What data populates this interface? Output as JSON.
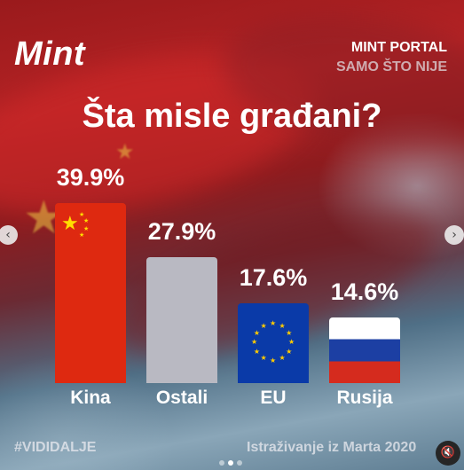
{
  "header": {
    "logo": "Mint",
    "portal_name": "MINT PORTAL",
    "portal_tagline": "SAMO ŠTO NIJE"
  },
  "footer": {
    "hashtag": "#VIDIDALJE",
    "source": "Istraživanje iz Marta 2020"
  },
  "carousel": {
    "total_slides": 3,
    "active_slide": 2
  },
  "chart_data": {
    "type": "bar",
    "title": "Šta misle građani?",
    "categories": [
      "Kina",
      "Ostali",
      "EU",
      "Rusija"
    ],
    "values": [
      39.9,
      27.9,
      17.6,
      14.6
    ],
    "value_labels": [
      "39.9%",
      "27.9%",
      "17.6%",
      "14.6%"
    ],
    "unit": "%",
    "bar_fills": [
      "flag-china",
      "solid-gray",
      "flag-eu",
      "flag-russia"
    ],
    "colors": {
      "ostali": "#b9b9c2",
      "china_red": "#de2910",
      "eu_blue": "#0a3aa8"
    },
    "ylim": [
      0,
      40
    ],
    "grid": false,
    "legend": "none"
  }
}
